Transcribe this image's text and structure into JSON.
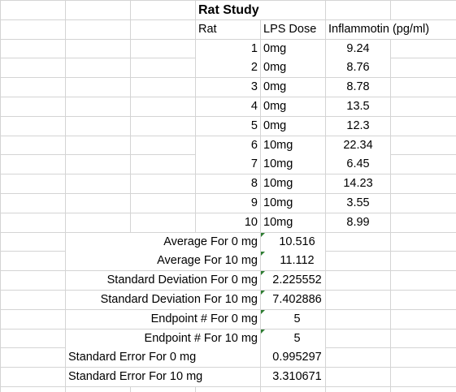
{
  "sheet": {
    "title": "Rat Study",
    "headers": {
      "rat": "Rat",
      "dose": "LPS Dose",
      "inflammotin": "Inflammotin (pg/ml)"
    },
    "rows": [
      {
        "rat": "1",
        "dose": "0mg",
        "value": "9.24"
      },
      {
        "rat": "2",
        "dose": "0mg",
        "value": "8.76"
      },
      {
        "rat": "3",
        "dose": "0mg",
        "value": "8.78"
      },
      {
        "rat": "4",
        "dose": "0mg",
        "value": "13.5"
      },
      {
        "rat": "5",
        "dose": "0mg",
        "value": "12.3"
      },
      {
        "rat": "6",
        "dose": "10mg",
        "value": "22.34"
      },
      {
        "rat": "7",
        "dose": "10mg",
        "value": "6.45"
      },
      {
        "rat": "8",
        "dose": "10mg",
        "value": "14.23"
      },
      {
        "rat": "9",
        "dose": "10mg",
        "value": "3.55"
      },
      {
        "rat": "10",
        "dose": "10mg",
        "value": "8.99"
      }
    ],
    "stats": [
      {
        "label": "Average For 0 mg",
        "value": "10.516"
      },
      {
        "label": "Average For 10 mg",
        "value": "11.112"
      },
      {
        "label": "Standard Deviation For 0 mg",
        "value": "2.225552"
      },
      {
        "label": "Standard Deviation For 10 mg",
        "value": "7.402886"
      },
      {
        "label": "Endpoint # For 0 mg",
        "value": "5"
      },
      {
        "label": "Endpoint # For 10 mg",
        "value": "5"
      },
      {
        "label": "Standard Error For 0 mg",
        "value": "0.995297"
      },
      {
        "label": "Standard Error For 10 mg",
        "value": "3.310671"
      }
    ],
    "gridline_color": "#d4d4d4",
    "error_flag_color": "#2e7d32",
    "error_flag_icon": "green-triangle-icon"
  }
}
